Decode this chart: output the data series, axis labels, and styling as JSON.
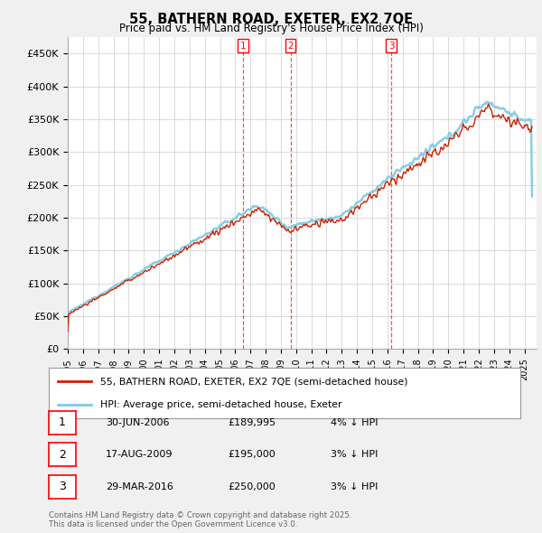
{
  "title": "55, BATHERN ROAD, EXETER, EX2 7QE",
  "subtitle": "Price paid vs. HM Land Registry's House Price Index (HPI)",
  "ylabel_ticks": [
    "£0",
    "£50K",
    "£100K",
    "£150K",
    "£200K",
    "£250K",
    "£300K",
    "£350K",
    "£400K",
    "£450K"
  ],
  "ytick_values": [
    0,
    50000,
    100000,
    150000,
    200000,
    250000,
    300000,
    350000,
    400000,
    450000
  ],
  "ylim": [
    0,
    475000
  ],
  "xlim_start": 1995.0,
  "xlim_end": 2025.8,
  "hpi_color": "#7ec8e3",
  "price_color": "#cc2200",
  "vline_color": "#cc2200",
  "grid_color": "#cccccc",
  "bg_color": "#f0f0f0",
  "plot_bg": "#ffffff",
  "transactions": [
    {
      "label": "1",
      "date": 2006.5,
      "price": 189995,
      "text": "30-JUN-2006",
      "amount": "£189,995",
      "pct": "4% ↓ HPI"
    },
    {
      "label": "2",
      "date": 2009.63,
      "price": 195000,
      "text": "17-AUG-2009",
      "amount": "£195,000",
      "pct": "3% ↓ HPI"
    },
    {
      "label": "3",
      "date": 2016.25,
      "price": 250000,
      "text": "29-MAR-2016",
      "amount": "£250,000",
      "pct": "3% ↓ HPI"
    }
  ],
  "legend_line1": "55, BATHERN ROAD, EXETER, EX2 7QE (semi-detached house)",
  "legend_line2": "HPI: Average price, semi-detached house, Exeter",
  "footer": "Contains HM Land Registry data © Crown copyright and database right 2025.\nThis data is licensed under the Open Government Licence v3.0.",
  "xtick_years": [
    1995,
    1996,
    1997,
    1998,
    1999,
    2000,
    2001,
    2002,
    2003,
    2004,
    2005,
    2006,
    2007,
    2008,
    2009,
    2010,
    2011,
    2012,
    2013,
    2014,
    2015,
    2016,
    2017,
    2018,
    2019,
    2020,
    2021,
    2022,
    2023,
    2024,
    2025
  ]
}
